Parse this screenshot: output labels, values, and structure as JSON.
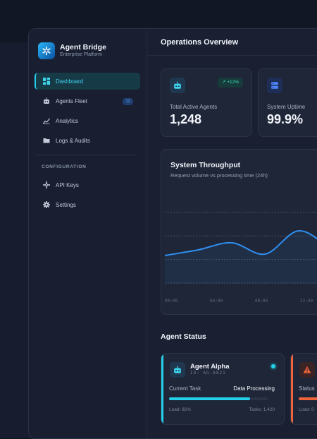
{
  "brand": {
    "name": "Agent Bridge",
    "subtitle": "Enterprise Platform"
  },
  "sidebar": {
    "items": [
      {
        "label": "Dashboard",
        "icon": "dashboard-icon",
        "active": true
      },
      {
        "label": "Agents Fleet",
        "icon": "robot-icon",
        "badge": "12"
      },
      {
        "label": "Analytics",
        "icon": "analytics-icon"
      },
      {
        "label": "Logs & Audits",
        "icon": "folder-icon"
      }
    ],
    "section_label": "CONFIGURATION",
    "config_items": [
      {
        "label": "API Keys",
        "icon": "key-icon"
      },
      {
        "label": "Settings",
        "icon": "gear-icon"
      }
    ]
  },
  "header": {
    "title": "Operations Overview"
  },
  "stats": [
    {
      "label": "Total Active Agents",
      "value": "1,248",
      "trend": "+12%",
      "icon": "robot-icon"
    },
    {
      "label": "System Uptime",
      "value": "99.9%",
      "icon": "server-icon"
    }
  ],
  "throughput": {
    "title": "System Throughput",
    "subtitle": "Request volume vs processing time (24h)",
    "x_ticks": [
      "00:00",
      "04:00",
      "08:00",
      "12:00"
    ],
    "line_color": "#2f8ff0"
  },
  "chart_data": {
    "type": "line",
    "x": [
      "00:00",
      "02:00",
      "04:00",
      "06:00",
      "08:00",
      "10:00",
      "12:00"
    ],
    "series": [
      {
        "values": [
          40,
          48,
          58,
          42,
          75,
          50,
          35
        ]
      }
    ],
    "ylim": [
      0,
      100
    ],
    "grid": true,
    "title": "System Throughput",
    "subtitle": "Request volume vs processing time (24h)",
    "xlabel": "",
    "ylabel": ""
  },
  "agents_section": {
    "title": "Agent Status"
  },
  "agents": [
    {
      "name": "Agent Alpha",
      "id": "ID: AG-8821",
      "task_label": "Current Task",
      "task_value": "Data Processing",
      "load": "Load: 82%",
      "tasks": "Tasks: 1,420",
      "progress": 0.82,
      "accent": "#25d0ea"
    },
    {
      "task_label": "Status",
      "load": "Load: 0",
      "accent": "#f0643c"
    }
  ]
}
